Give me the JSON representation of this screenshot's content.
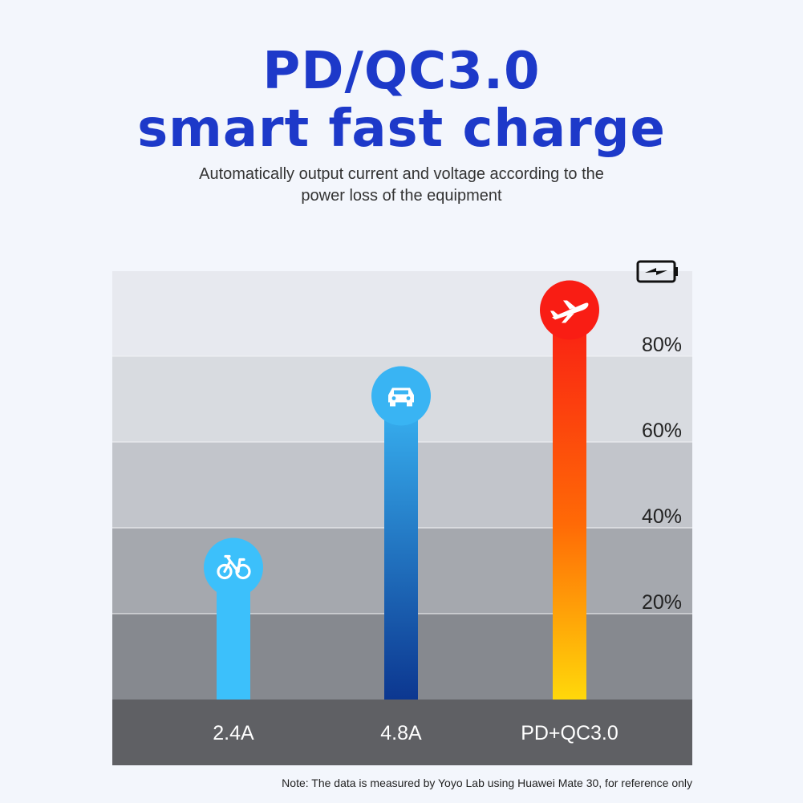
{
  "header": {
    "title_line1": "PD/QC3.0",
    "title_line2": "smart fast charge",
    "subtitle_line1": "Automatically output current and voltage according to the",
    "subtitle_line2": "power loss of the equipment"
  },
  "note": "Note: The data is measured by Yoyo Lab using Huawei Mate 30, for reference only",
  "colors": {
    "title": "#1d39c9",
    "bike_bar": "#3cc0fb",
    "car_bar_top": "#39b4f3",
    "car_bar_bottom": "#0c3790",
    "plane_bar_top": "#f91d14",
    "plane_bar_bottom": "#ffd80a",
    "label_strip": "#5f6064"
  },
  "chart_data": {
    "type": "bar",
    "categories": [
      "2.4A",
      "4.8A",
      "PD+QC3.0"
    ],
    "values": [
      30,
      70,
      90
    ],
    "icons": [
      "bicycle-icon",
      "car-icon",
      "airplane-icon"
    ],
    "y_tick_labels": [
      "20%",
      "40%",
      "60%",
      "80%"
    ],
    "y_ticks": [
      20,
      40,
      60,
      80
    ],
    "ylim": [
      0,
      100
    ],
    "axis_icon": "battery-charging-icon",
    "grid": true
  }
}
